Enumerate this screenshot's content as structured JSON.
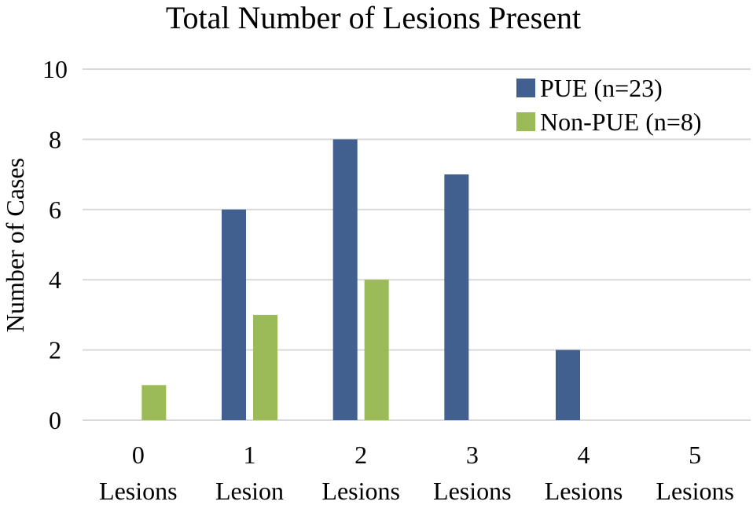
{
  "chart_data": {
    "type": "bar",
    "title": "Total Number of Lesions Present",
    "xlabel": "",
    "ylabel": "Number of Cases",
    "ylim": [
      0,
      10
    ],
    "yticks": [
      "0",
      "2",
      "4",
      "6",
      "8",
      "10"
    ],
    "categories": [
      {
        "line1": "0",
        "line2": "Lesions"
      },
      {
        "line1": "1",
        "line2": "Lesion"
      },
      {
        "line1": "2",
        "line2": "Lesions"
      },
      {
        "line1": "3",
        "line2": "Lesions"
      },
      {
        "line1": "4",
        "line2": "Lesions"
      },
      {
        "line1": "5",
        "line2": "Lesions"
      }
    ],
    "series": [
      {
        "name": "PUE (n=23)",
        "color": "#41608f",
        "values": [
          0,
          6,
          8,
          7,
          2,
          0
        ]
      },
      {
        "name": "Non-PUE (n=8)",
        "color": "#9bbb59",
        "values": [
          1,
          3,
          4,
          0,
          0,
          0
        ]
      }
    ],
    "grid": true,
    "legend": "top-right"
  }
}
